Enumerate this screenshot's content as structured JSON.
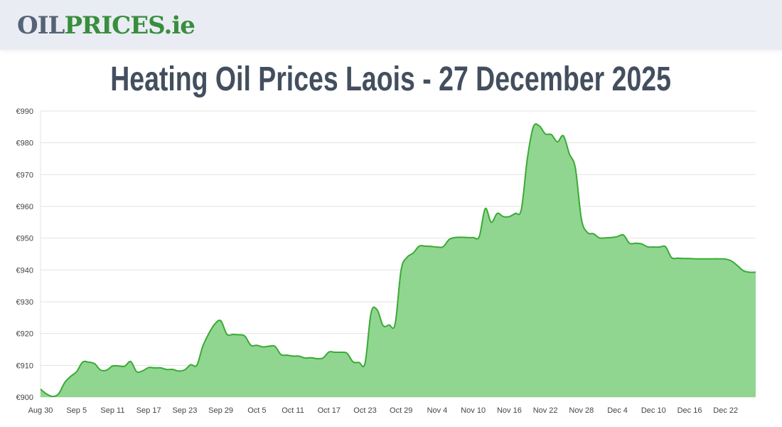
{
  "header": {
    "logo_part1": "OIL",
    "logo_part2": "PRICES.ie"
  },
  "page_title": "Heating Oil Prices Laois - 27 December 2025",
  "chart_data": {
    "type": "area",
    "title": "Heating Oil Prices Laois - 27 December 2025",
    "xlabel": "",
    "ylabel": "",
    "ylim": [
      900,
      990
    ],
    "y_ticks": [
      "€900",
      "€910",
      "€920",
      "€930",
      "€940",
      "€950",
      "€960",
      "€970",
      "€980",
      "€990"
    ],
    "y_tick_values": [
      900,
      910,
      920,
      930,
      940,
      950,
      960,
      970,
      980,
      990
    ],
    "x_ticks": [
      "Aug 30",
      "Sep 5",
      "Sep 11",
      "Sep 17",
      "Sep 23",
      "Sep 29",
      "Oct 5",
      "Oct 11",
      "Oct 17",
      "Oct 23",
      "Oct 29",
      "Nov 4",
      "Nov 10",
      "Nov 16",
      "Nov 22",
      "Nov 28",
      "Dec 4",
      "Dec 10",
      "Dec 16",
      "Dec 22"
    ],
    "grid": true,
    "legend": "none",
    "colors": {
      "line": "#3aaa35",
      "fill": "#90d690",
      "grid": "#e3e3e3"
    },
    "x": [
      "2025-08-30",
      "2025-08-31",
      "2025-09-01",
      "2025-09-02",
      "2025-09-03",
      "2025-09-04",
      "2025-09-05",
      "2025-09-06",
      "2025-09-07",
      "2025-09-08",
      "2025-09-09",
      "2025-09-10",
      "2025-09-11",
      "2025-09-12",
      "2025-09-13",
      "2025-09-14",
      "2025-09-15",
      "2025-09-16",
      "2025-09-17",
      "2025-09-18",
      "2025-09-19",
      "2025-09-20",
      "2025-09-21",
      "2025-09-22",
      "2025-09-23",
      "2025-09-24",
      "2025-09-25",
      "2025-09-26",
      "2025-09-27",
      "2025-09-28",
      "2025-09-29",
      "2025-09-30",
      "2025-10-01",
      "2025-10-02",
      "2025-10-03",
      "2025-10-04",
      "2025-10-05",
      "2025-10-06",
      "2025-10-07",
      "2025-10-08",
      "2025-10-09",
      "2025-10-10",
      "2025-10-11",
      "2025-10-12",
      "2025-10-13",
      "2025-10-14",
      "2025-10-15",
      "2025-10-16",
      "2025-10-17",
      "2025-10-18",
      "2025-10-19",
      "2025-10-20",
      "2025-10-21",
      "2025-10-22",
      "2025-10-23",
      "2025-10-24",
      "2025-10-25",
      "2025-10-26",
      "2025-10-27",
      "2025-10-28",
      "2025-10-29",
      "2025-10-30",
      "2025-10-31",
      "2025-11-01",
      "2025-11-02",
      "2025-11-03",
      "2025-11-04",
      "2025-11-05",
      "2025-11-06",
      "2025-11-07",
      "2025-11-08",
      "2025-11-09",
      "2025-11-10",
      "2025-11-11",
      "2025-11-12",
      "2025-11-13",
      "2025-11-14",
      "2025-11-15",
      "2025-11-16",
      "2025-11-17",
      "2025-11-18",
      "2025-11-19",
      "2025-11-20",
      "2025-11-21",
      "2025-11-22",
      "2025-11-23",
      "2025-11-24",
      "2025-11-25",
      "2025-11-26",
      "2025-11-27",
      "2025-11-28",
      "2025-11-29",
      "2025-11-30",
      "2025-12-01",
      "2025-12-02",
      "2025-12-03",
      "2025-12-04",
      "2025-12-05",
      "2025-12-06",
      "2025-12-07",
      "2025-12-08",
      "2025-12-09",
      "2025-12-10",
      "2025-12-11",
      "2025-12-12",
      "2025-12-13",
      "2025-12-14",
      "2025-12-15",
      "2025-12-16",
      "2025-12-17",
      "2025-12-18",
      "2025-12-19",
      "2025-12-20",
      "2025-12-21",
      "2025-12-22",
      "2025-12-23",
      "2025-12-24",
      "2025-12-25",
      "2025-12-26",
      "2025-12-27"
    ],
    "values": [
      902.5,
      901,
      900.2,
      901,
      904.5,
      906.5,
      908,
      911,
      911,
      910.5,
      908.5,
      908.5,
      909.8,
      909.8,
      909.7,
      911.2,
      908,
      908.3,
      909.3,
      909.2,
      909.2,
      908.7,
      908.7,
      908.2,
      908.6,
      910.2,
      910,
      916,
      920,
      923,
      924,
      919.8,
      919.7,
      919.6,
      919.2,
      916.3,
      916.3,
      915.8,
      916,
      916,
      913.4,
      913.2,
      912.9,
      912.9,
      912.3,
      912.4,
      912.1,
      912.3,
      914.2,
      914.1,
      914.1,
      913.8,
      911.1,
      910.9,
      910.7,
      926.5,
      927.5,
      922.5,
      922.7,
      923,
      940,
      944,
      945.3,
      947.5,
      947.5,
      947.4,
      947.2,
      947.3,
      949.6,
      950.2,
      950.3,
      950.2,
      950.2,
      950.5,
      959.3,
      955,
      957.8,
      956.8,
      956.8,
      957.8,
      959,
      975,
      985,
      985.3,
      982.8,
      982.6,
      980.3,
      982.2,
      976.5,
      972,
      956,
      951.8,
      951.4,
      950.1,
      950.1,
      950.2,
      950.5,
      951,
      948.4,
      948.4,
      948.2,
      947.3,
      947.2,
      947.2,
      947.3,
      943.9,
      943.7,
      943.6,
      943.6,
      943.5,
      943.5,
      943.5,
      943.5,
      943.5,
      943.4,
      942.8,
      941.3,
      939.7,
      939.3,
      939.3
    ]
  }
}
